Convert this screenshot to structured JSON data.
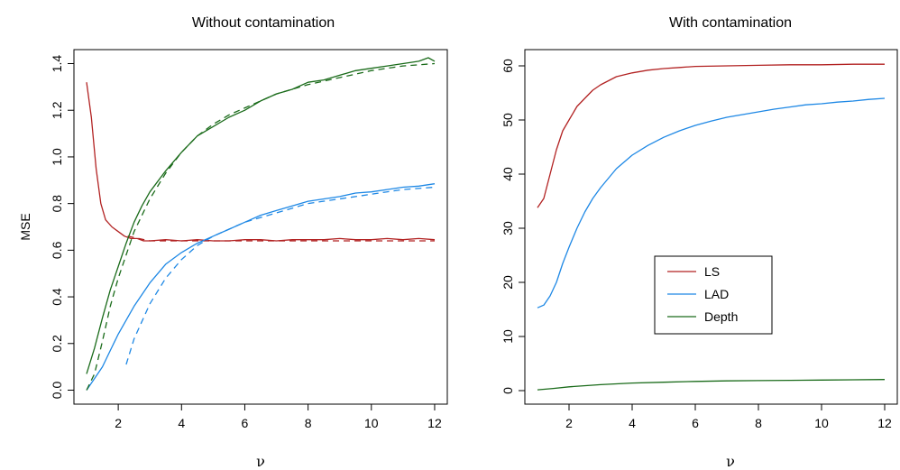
{
  "chart_data": [
    {
      "type": "line",
      "title": "Without contamination",
      "xlabel": "ν",
      "ylabel": "MSE",
      "xlim": [
        0.6,
        12.4
      ],
      "ylim": [
        -0.06,
        1.46
      ],
      "xticks": [
        2,
        4,
        6,
        8,
        10,
        12
      ],
      "yticks": [
        0.0,
        0.2,
        0.4,
        0.6,
        0.8,
        1.0,
        1.2,
        1.4
      ],
      "ytick_labels": [
        "0.0",
        "0.2",
        "0.4",
        "0.6",
        "0.8",
        "1.0",
        "1.2",
        "1.4"
      ],
      "grid": false,
      "series": [
        {
          "group": "LS",
          "style": "solid",
          "color": "#b22222",
          "x": [
            1.0,
            1.15,
            1.3,
            1.45,
            1.6,
            1.8,
            2.0,
            2.2,
            2.4,
            2.6,
            2.8,
            3.0,
            3.5,
            4.0,
            4.5,
            5.0,
            5.5,
            6.0,
            6.5,
            7.0,
            7.5,
            8.0,
            8.5,
            9.0,
            9.5,
            10.0,
            10.5,
            11.0,
            11.5,
            12.0
          ],
          "y": [
            1.32,
            1.17,
            0.95,
            0.8,
            0.73,
            0.7,
            0.68,
            0.66,
            0.65,
            0.65,
            0.64,
            0.64,
            0.645,
            0.64,
            0.645,
            0.64,
            0.64,
            0.645,
            0.645,
            0.64,
            0.645,
            0.645,
            0.645,
            0.65,
            0.645,
            0.645,
            0.65,
            0.645,
            0.65,
            0.645
          ]
        },
        {
          "group": "LS",
          "style": "dashed",
          "color": "#b22222",
          "x": [
            2.3,
            3.0,
            4.0,
            6.0,
            8.0,
            10.0,
            12.0
          ],
          "y": [
            0.66,
            0.64,
            0.64,
            0.64,
            0.64,
            0.64,
            0.64
          ]
        },
        {
          "group": "LAD",
          "style": "solid",
          "color": "#1e88e5",
          "x": [
            1.0,
            1.25,
            1.5,
            1.75,
            2.0,
            2.5,
            3.0,
            3.5,
            4.0,
            4.5,
            5.0,
            5.5,
            6.0,
            6.5,
            7.0,
            7.5,
            8.0,
            8.5,
            9.0,
            9.5,
            10.0,
            10.5,
            11.0,
            11.5,
            12.0
          ],
          "y": [
            0.0,
            0.05,
            0.1,
            0.17,
            0.24,
            0.36,
            0.46,
            0.54,
            0.59,
            0.63,
            0.66,
            0.69,
            0.72,
            0.75,
            0.77,
            0.79,
            0.81,
            0.82,
            0.83,
            0.845,
            0.85,
            0.86,
            0.87,
            0.875,
            0.885
          ]
        },
        {
          "group": "LAD",
          "style": "dashed",
          "color": "#1e88e5",
          "x": [
            2.25,
            2.5,
            3.0,
            3.5,
            4.0,
            4.5,
            5.0,
            5.5,
            6.0,
            7.0,
            8.0,
            9.0,
            10.0,
            11.0,
            12.0
          ],
          "y": [
            0.11,
            0.22,
            0.37,
            0.48,
            0.56,
            0.62,
            0.66,
            0.69,
            0.72,
            0.76,
            0.8,
            0.82,
            0.84,
            0.86,
            0.87
          ]
        },
        {
          "group": "Depth",
          "style": "solid",
          "color": "#1a6b1a",
          "x": [
            1.0,
            1.25,
            1.5,
            1.75,
            2.0,
            2.25,
            2.5,
            2.75,
            3.0,
            3.5,
            4.0,
            4.5,
            5.0,
            5.5,
            6.0,
            6.5,
            7.0,
            7.5,
            8.0,
            8.5,
            9.0,
            9.5,
            10.0,
            10.5,
            11.0,
            11.5,
            11.8,
            12.0
          ],
          "y": [
            0.07,
            0.18,
            0.31,
            0.43,
            0.53,
            0.63,
            0.72,
            0.79,
            0.85,
            0.94,
            1.02,
            1.09,
            1.13,
            1.17,
            1.2,
            1.24,
            1.27,
            1.29,
            1.32,
            1.33,
            1.35,
            1.37,
            1.38,
            1.39,
            1.4,
            1.41,
            1.425,
            1.41
          ]
        },
        {
          "group": "Depth",
          "style": "dashed",
          "color": "#1a6b1a",
          "x": [
            1.0,
            1.25,
            1.5,
            1.75,
            2.0,
            2.5,
            3.0,
            3.5,
            4.0,
            4.5,
            5.0,
            5.5,
            6.0,
            7.0,
            8.0,
            9.0,
            10.0,
            11.0,
            12.0
          ],
          "y": [
            0.0,
            0.07,
            0.21,
            0.36,
            0.48,
            0.68,
            0.82,
            0.93,
            1.02,
            1.09,
            1.14,
            1.18,
            1.21,
            1.27,
            1.31,
            1.34,
            1.37,
            1.39,
            1.4
          ]
        }
      ]
    },
    {
      "type": "line",
      "title": "With contamination",
      "xlabel": "ν",
      "ylabel": "",
      "xlim": [
        0.6,
        12.4
      ],
      "ylim": [
        -2.5,
        63
      ],
      "xticks": [
        2,
        4,
        6,
        8,
        10,
        12
      ],
      "yticks": [
        0,
        10,
        20,
        30,
        40,
        50,
        60
      ],
      "ytick_labels": [
        "0",
        "10",
        "20",
        "30",
        "40",
        "50",
        "60"
      ],
      "grid": false,
      "legend": {
        "position": "center",
        "entries": [
          {
            "label": "LS",
            "color": "#b22222"
          },
          {
            "label": "LAD",
            "color": "#1e88e5"
          },
          {
            "label": "Depth",
            "color": "#1a6b1a"
          }
        ]
      },
      "series": [
        {
          "name": "LS",
          "style": "solid",
          "color": "#b22222",
          "x": [
            1.0,
            1.2,
            1.4,
            1.6,
            1.8,
            2.0,
            2.25,
            2.5,
            2.75,
            3.0,
            3.5,
            4.0,
            4.5,
            5.0,
            5.5,
            6.0,
            7.0,
            8.0,
            9.0,
            10.0,
            11.0,
            12.0
          ],
          "y": [
            33.8,
            35.5,
            40.0,
            44.5,
            48.0,
            50.0,
            52.5,
            54.0,
            55.5,
            56.5,
            58.0,
            58.7,
            59.2,
            59.5,
            59.7,
            59.9,
            60.0,
            60.1,
            60.2,
            60.2,
            60.3,
            60.3
          ]
        },
        {
          "name": "LAD",
          "style": "solid",
          "color": "#1e88e5",
          "x": [
            1.0,
            1.2,
            1.4,
            1.6,
            1.8,
            2.0,
            2.25,
            2.5,
            2.75,
            3.0,
            3.5,
            4.0,
            4.5,
            5.0,
            5.5,
            6.0,
            6.5,
            7.0,
            7.5,
            8.0,
            8.5,
            9.0,
            9.5,
            10.0,
            10.5,
            11.0,
            11.5,
            12.0
          ],
          "y": [
            15.3,
            15.8,
            17.5,
            20.0,
            23.5,
            26.5,
            30.0,
            33.0,
            35.5,
            37.5,
            41.0,
            43.5,
            45.3,
            46.8,
            48.0,
            49.0,
            49.8,
            50.5,
            51.0,
            51.5,
            52.0,
            52.4,
            52.8,
            53.0,
            53.3,
            53.5,
            53.8,
            54.0
          ]
        },
        {
          "name": "Depth",
          "style": "solid",
          "color": "#1a6b1a",
          "x": [
            1.0,
            1.5,
            2.0,
            3.0,
            4.0,
            5.0,
            6.0,
            7.0,
            8.0,
            9.0,
            10.0,
            11.0,
            12.0
          ],
          "y": [
            0.15,
            0.4,
            0.7,
            1.1,
            1.4,
            1.55,
            1.7,
            1.8,
            1.85,
            1.9,
            1.95,
            2.0,
            2.05
          ]
        }
      ]
    }
  ]
}
